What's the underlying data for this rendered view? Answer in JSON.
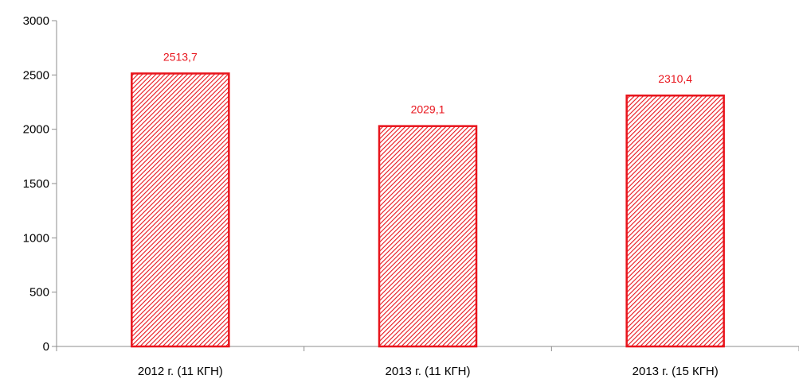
{
  "chart_data": {
    "type": "bar",
    "title": "",
    "xlabel": "",
    "ylabel": "",
    "categories": [
      "2012 г. (11 КГН)",
      "2013 г. (11 КГН)",
      "2013 г. (15 КГН)"
    ],
    "values": [
      2513.7,
      2029.1,
      2310.4
    ],
    "data_labels": [
      "2513,7",
      "2029,1",
      "2310,4"
    ],
    "ylim": [
      0,
      3000
    ],
    "yticks": [
      0,
      500,
      1000,
      1500,
      2000,
      2500,
      3000
    ],
    "ytick_labels": [
      "0",
      "500",
      "1000",
      "1500",
      "2000",
      "2500",
      "3000"
    ],
    "grid": false,
    "legend": "none",
    "colors": {
      "bar_stroke": "#e8141c",
      "bar_hatch": "#e8141c",
      "data_label": "#e8141c",
      "axis": "#8c8c8c",
      "tick_label": "#000000"
    }
  }
}
